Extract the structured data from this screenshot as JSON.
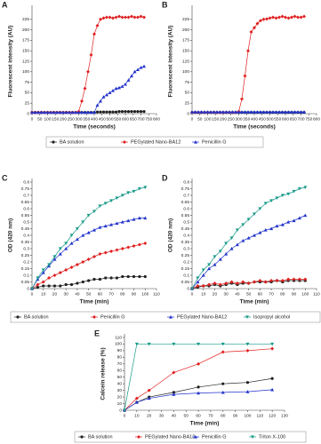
{
  "chart_data": [
    {
      "type": "line",
      "panel": "A",
      "x_label": "Time (seconds)",
      "y_label": "Fluorescent intensity (AU)",
      "xlim": [
        0,
        800
      ],
      "xticks": [
        0,
        50,
        100,
        150,
        200,
        250,
        300,
        350,
        400,
        450,
        500,
        550,
        600,
        650,
        700,
        750,
        800
      ],
      "ylim": [
        0,
        250
      ],
      "yticks": [
        0,
        25,
        50,
        75,
        100,
        125,
        150,
        175,
        200,
        225
      ],
      "x": [
        0,
        20,
        40,
        60,
        80,
        100,
        120,
        140,
        160,
        180,
        200,
        220,
        240,
        260,
        280,
        300,
        320,
        340,
        360,
        380,
        400,
        420,
        440,
        460,
        480,
        500,
        520,
        540,
        560,
        580,
        600,
        620,
        640,
        660,
        680,
        700,
        720
      ],
      "series": [
        {
          "name": "BA solution",
          "color": "#222222",
          "marker": "circle",
          "values": [
            3,
            3,
            3,
            3,
            3,
            3,
            3,
            3,
            3,
            3,
            3,
            3,
            3,
            3,
            3,
            3,
            3,
            3,
            3,
            3,
            3,
            4,
            4,
            4,
            4,
            4,
            4,
            4,
            5,
            5,
            5,
            5,
            5,
            5,
            5,
            5,
            5
          ]
        },
        {
          "name": "PEGylated Nano-BA12",
          "color": "#e02020",
          "marker": "diamond",
          "values": [
            3,
            3,
            3,
            3,
            3,
            3,
            3,
            3,
            3,
            3,
            3,
            3,
            3,
            3,
            3,
            5,
            30,
            60,
            100,
            140,
            190,
            210,
            225,
            228,
            230,
            230,
            228,
            230,
            232,
            230,
            230,
            230,
            232,
            230,
            230,
            232,
            230
          ]
        },
        {
          "name": "Penicillin G",
          "color": "#2233cc",
          "marker": "triangle",
          "values": [
            3,
            3,
            3,
            3,
            3,
            3,
            3,
            3,
            3,
            3,
            3,
            3,
            3,
            3,
            3,
            3,
            3,
            3,
            3,
            3,
            3,
            20,
            30,
            40,
            45,
            50,
            55,
            60,
            62,
            65,
            70,
            80,
            90,
            100,
            105,
            110,
            113
          ]
        }
      ]
    },
    {
      "type": "line",
      "panel": "B",
      "x_label": "Time (seconds)",
      "y_label": "Fluorescent intensity (AU)",
      "xlim": [
        0,
        800
      ],
      "xticks": [
        0,
        50,
        100,
        150,
        200,
        250,
        300,
        350,
        400,
        450,
        500,
        550,
        600,
        650,
        700,
        750,
        800
      ],
      "ylim": [
        0,
        250
      ],
      "yticks": [
        0,
        25,
        50,
        75,
        100,
        125,
        150,
        175,
        200,
        225
      ],
      "x": [
        0,
        20,
        40,
        60,
        80,
        100,
        120,
        140,
        160,
        180,
        200,
        220,
        240,
        260,
        280,
        300,
        320,
        340,
        360,
        380,
        400,
        420,
        440,
        460,
        480,
        500,
        520,
        540,
        560,
        580,
        600,
        620,
        640,
        660,
        680,
        700,
        720
      ],
      "series": [
        {
          "color": "#222222",
          "marker": "circle",
          "values": [
            3,
            3,
            3,
            3,
            3,
            3,
            3,
            3,
            3,
            3,
            3,
            3,
            3,
            3,
            3,
            3,
            3,
            3,
            3,
            3,
            3,
            3,
            3,
            3,
            3,
            3,
            3,
            3,
            3,
            3,
            3,
            3,
            3,
            3,
            3,
            3,
            3
          ]
        },
        {
          "color": "#e02020",
          "marker": "diamond",
          "values": [
            3,
            3,
            3,
            3,
            3,
            3,
            3,
            3,
            3,
            3,
            3,
            3,
            3,
            3,
            3,
            5,
            35,
            90,
            150,
            195,
            205,
            215,
            222,
            225,
            226,
            228,
            230,
            228,
            230,
            232,
            230,
            228,
            230,
            232,
            230,
            230,
            232
          ]
        },
        {
          "color": "#2233cc",
          "marker": "triangle",
          "values": [
            4,
            4,
            4,
            4,
            4,
            4,
            4,
            4,
            4,
            4,
            4,
            4,
            4,
            4,
            4,
            4,
            4,
            4,
            4,
            4,
            4,
            4,
            4,
            4,
            4,
            4,
            4,
            4,
            4,
            4,
            4,
            4,
            4,
            4,
            4,
            4,
            4
          ]
        }
      ]
    },
    {
      "type": "line",
      "panel": "C",
      "x_label": "Time (min)",
      "y_label": "OD (420 nm)",
      "xlim": [
        0,
        110
      ],
      "xticks": [
        0,
        10,
        20,
        30,
        40,
        50,
        60,
        70,
        80,
        90,
        100,
        110
      ],
      "ylim": [
        0,
        0.8
      ],
      "yticks": [
        0,
        0.05,
        0.1,
        0.15,
        0.2,
        0.25,
        0.3,
        0.35,
        0.4,
        0.45,
        0.5,
        0.55,
        0.6,
        0.65,
        0.7,
        0.75,
        0.8
      ],
      "x": [
        0,
        5,
        10,
        15,
        20,
        25,
        30,
        35,
        40,
        45,
        50,
        55,
        60,
        65,
        70,
        75,
        80,
        85,
        90,
        95,
        100
      ],
      "series": [
        {
          "name": "BA solution",
          "color": "#222222",
          "marker": "circle",
          "values": [
            0,
            0.01,
            0.02,
            0.02,
            0.02,
            0.02,
            0.03,
            0.03,
            0.04,
            0.05,
            0.06,
            0.07,
            0.07,
            0.08,
            0.08,
            0.08,
            0.09,
            0.09,
            0.09,
            0.09,
            0.09
          ]
        },
        {
          "name": "Penicillin G",
          "color": "#e02020",
          "marker": "diamond",
          "values": [
            0,
            0.03,
            0.05,
            0.08,
            0.1,
            0.12,
            0.14,
            0.16,
            0.18,
            0.2,
            0.22,
            0.24,
            0.26,
            0.27,
            0.28,
            0.29,
            0.3,
            0.31,
            0.32,
            0.33,
            0.34
          ]
        },
        {
          "name": "PEGylated Nano-BA12",
          "color": "#2233cc",
          "marker": "triangle",
          "values": [
            0,
            0.07,
            0.12,
            0.17,
            0.22,
            0.26,
            0.3,
            0.34,
            0.37,
            0.4,
            0.42,
            0.44,
            0.46,
            0.47,
            0.48,
            0.49,
            0.5,
            0.51,
            0.52,
            0.53,
            0.53
          ]
        },
        {
          "name": "Isopropyl alcohol",
          "color": "#1a9a8a",
          "marker": "down",
          "values": [
            0,
            0.08,
            0.14,
            0.18,
            0.24,
            0.3,
            0.34,
            0.4,
            0.45,
            0.5,
            0.55,
            0.58,
            0.62,
            0.64,
            0.66,
            0.68,
            0.7,
            0.72,
            0.73,
            0.75,
            0.76
          ]
        }
      ]
    },
    {
      "type": "line",
      "panel": "D",
      "x_label": "Time (min)",
      "y_label": "OD (420 nm)",
      "xlim": [
        0,
        110
      ],
      "xticks": [
        0,
        10,
        20,
        30,
        40,
        50,
        60,
        70,
        80,
        90,
        100,
        110
      ],
      "ylim": [
        0,
        0.8
      ],
      "yticks": [
        0,
        0.05,
        0.1,
        0.15,
        0.2,
        0.25,
        0.3,
        0.35,
        0.4,
        0.45,
        0.5,
        0.55,
        0.6,
        0.65,
        0.7,
        0.75,
        0.8
      ],
      "x": [
        0,
        5,
        10,
        15,
        20,
        25,
        30,
        35,
        40,
        45,
        50,
        55,
        60,
        65,
        70,
        75,
        80,
        85,
        90,
        95,
        100
      ],
      "series": [
        {
          "color": "#222222",
          "marker": "circle",
          "values": [
            0,
            0.01,
            0.02,
            0.02,
            0.03,
            0.02,
            0.03,
            0.04,
            0.03,
            0.04,
            0.04,
            0.05,
            0.05,
            0.05,
            0.05,
            0.06,
            0.05,
            0.06,
            0.06,
            0.06,
            0.06
          ]
        },
        {
          "color": "#e02020",
          "marker": "diamond",
          "values": [
            0,
            0.02,
            0.02,
            0.03,
            0.04,
            0.03,
            0.04,
            0.05,
            0.04,
            0.05,
            0.04,
            0.05,
            0.06,
            0.05,
            0.06,
            0.06,
            0.06,
            0.07,
            0.07,
            0.07,
            0.07
          ]
        },
        {
          "color": "#2233cc",
          "marker": "triangle",
          "values": [
            0,
            0.05,
            0.1,
            0.15,
            0.18,
            0.22,
            0.26,
            0.3,
            0.33,
            0.36,
            0.38,
            0.4,
            0.42,
            0.44,
            0.45,
            0.47,
            0.48,
            0.5,
            0.51,
            0.53,
            0.55
          ]
        },
        {
          "color": "#1a9a8a",
          "marker": "down",
          "values": [
            0,
            0.08,
            0.14,
            0.18,
            0.24,
            0.28,
            0.34,
            0.38,
            0.44,
            0.48,
            0.52,
            0.56,
            0.6,
            0.64,
            0.66,
            0.68,
            0.7,
            0.71,
            0.73,
            0.75,
            0.76
          ]
        }
      ]
    },
    {
      "type": "line",
      "panel": "E",
      "x_label": "Time (min)",
      "y_label": "Calcein release (%)",
      "xlim": [
        0,
        130
      ],
      "xticks": [
        0,
        10,
        20,
        30,
        40,
        50,
        60,
        70,
        80,
        90,
        100,
        110,
        120,
        130
      ],
      "ylim": [
        0,
        110
      ],
      "yticks": [
        0,
        10,
        20,
        30,
        40,
        50,
        60,
        70,
        80,
        90,
        100,
        110
      ],
      "x": [
        0,
        10,
        20,
        40,
        60,
        80,
        100,
        120
      ],
      "series": [
        {
          "name": "BA solution",
          "color": "#222222",
          "marker": "circle",
          "values": [
            0,
            12,
            20,
            27,
            35,
            40,
            42,
            48
          ]
        },
        {
          "name": "PEGylated Nano-BA12",
          "color": "#e02020",
          "marker": "diamond",
          "values": [
            0,
            18,
            30,
            57,
            70,
            88,
            90,
            93
          ]
        },
        {
          "name": "Penicillin G",
          "color": "#2233cc",
          "marker": "triangle",
          "values": [
            0,
            12,
            18,
            24,
            26,
            27,
            28,
            31
          ]
        },
        {
          "name": "Triton X-100",
          "color": "#1a9a8a",
          "marker": "down",
          "values": [
            0,
            100,
            100,
            100,
            100,
            100,
            100,
            100
          ]
        }
      ]
    }
  ]
}
